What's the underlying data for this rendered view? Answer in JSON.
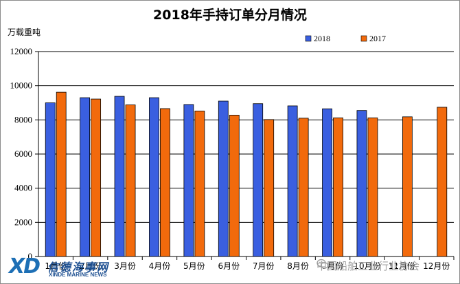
{
  "chart_data": {
    "type": "bar",
    "title": "2018年手持订单分月情况",
    "ylabel": "万载重吨",
    "xlabel": "",
    "ylim": [
      0,
      12000
    ],
    "yticks": [
      0,
      2000,
      4000,
      6000,
      8000,
      10000,
      12000
    ],
    "grid": true,
    "legend_position": "top-right",
    "categories": [
      "1月份",
      "2月份",
      "3月份",
      "4月份",
      "5月份",
      "6月份",
      "7月份",
      "8月份",
      "9月份",
      "10月份",
      "11月份",
      "12月份"
    ],
    "series": [
      {
        "name": "2018",
        "color": "#3a5fe0",
        "values": [
          9000,
          9300,
          9380,
          9300,
          8900,
          9100,
          8950,
          8820,
          8650,
          8550,
          null,
          null
        ]
      },
      {
        "name": "2017",
        "color": "#f26a0c",
        "values": [
          9620,
          9220,
          8880,
          8660,
          8520,
          8280,
          8020,
          8100,
          8120,
          8120,
          8180,
          8740
        ]
      }
    ]
  },
  "watermark": {
    "logo_text": "XD",
    "logo_cn": "信德海事网",
    "logo_en": "XINDE MARINE NEWS",
    "right_text": "中国船舶工业行业协会",
    "right_icon": "wechat-icon"
  }
}
